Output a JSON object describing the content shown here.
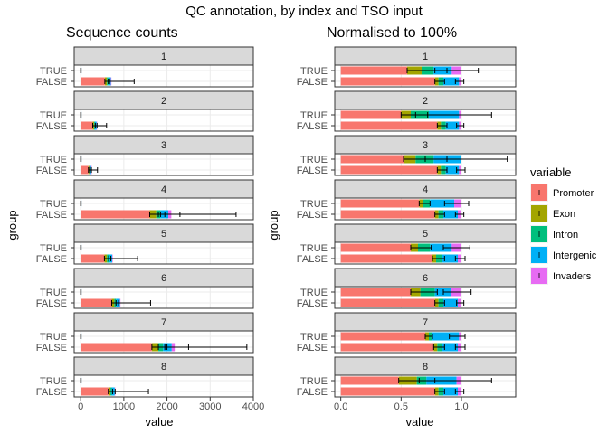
{
  "chart_data": {
    "type": "bar",
    "orientation": "horizontal",
    "stacked": true,
    "title": "QC annotation, by index and TSO input",
    "groups": [
      "TRUE",
      "FALSE"
    ],
    "variables": [
      "Promoter",
      "Exon",
      "Intron",
      "Intergenic",
      "Invaders"
    ],
    "legend": {
      "title": "variable",
      "position": "right"
    },
    "colors": {
      "Promoter": "#F8766D",
      "Exon": "#A3A500",
      "Intron": "#00BF7D",
      "Intergenic": "#00B0F6",
      "Invaders": "#E76BF3",
      "strip_bg": "#D9D9D9",
      "grid": "#EBEBEB"
    },
    "facets": [
      "1",
      "2",
      "3",
      "4",
      "5",
      "6",
      "7",
      "8"
    ],
    "panels": [
      {
        "title": "Sequence counts",
        "xlabel": "value",
        "ylabel": "group",
        "xlim": [
          -150,
          4000
        ],
        "xticks": [
          0,
          1000,
          2000,
          3000,
          4000
        ],
        "xticklabels": [
          "0",
          "1000",
          "2000",
          "3000",
          "4000"
        ],
        "rows": {
          "1": {
            "TRUE": {
              "segments": [
                4,
                1,
                1,
                2,
                0
              ],
              "errors": [
                [
                  0,
                  10
                ]
              ]
            },
            "FALSE": {
              "segments": [
                560,
                50,
                30,
                60,
                10
              ],
              "errors": [
                [
                  560,
                  670
                ],
                [
                  640,
                  1240
                ]
              ]
            }
          },
          "2": {
            "TRUE": {
              "segments": [
                4,
                1,
                1,
                2,
                0
              ],
              "errors": [
                [
                  0,
                  10
                ]
              ]
            },
            "FALSE": {
              "segments": [
                280,
                30,
                20,
                40,
                5
              ],
              "errors": [
                [
                  280,
                  380
                ],
                [
                  340,
                  600
                ]
              ]
            }
          },
          "3": {
            "TRUE": {
              "segments": [
                4,
                1,
                1,
                2,
                0
              ],
              "errors": [
                [
                  0,
                  10
                ]
              ]
            },
            "FALSE": {
              "segments": [
                180,
                20,
                15,
                30,
                5
              ],
              "errors": [
                [
                  180,
                  250
                ],
                [
                  210,
                  390
                ]
              ]
            }
          },
          "4": {
            "TRUE": {
              "segments": [
                4,
                1,
                1,
                2,
                0
              ],
              "errors": [
                [
                  0,
                  10
                ]
              ]
            },
            "FALSE": {
              "segments": [
                1600,
                150,
                100,
                180,
                70
              ],
              "errors": [
                [
                  1600,
                  1850
                ],
                [
                  1800,
                  2300
                ],
                [
                  1950,
                  3600
                ]
              ]
            }
          },
          "5": {
            "TRUE": {
              "segments": [
                4,
                1,
                1,
                2,
                0
              ],
              "errors": [
                [
                  0,
                  10
                ]
              ]
            },
            "FALSE": {
              "segments": [
                550,
                60,
                40,
                80,
                10
              ],
              "errors": [
                [
                  550,
                  700
                ],
                [
                  650,
                  1320
                ]
              ]
            }
          },
          "6": {
            "TRUE": {
              "segments": [
                4,
                1,
                1,
                2,
                0
              ],
              "errors": [
                [
                  0,
                  10
                ]
              ]
            },
            "FALSE": {
              "segments": [
                720,
                60,
                40,
                90,
                10
              ],
              "errors": [
                [
                  720,
                  880
                ],
                [
                  820,
                  1620
                ]
              ]
            }
          },
          "7": {
            "TRUE": {
              "segments": [
                4,
                1,
                1,
                2,
                0
              ],
              "errors": [
                [
                  0,
                  10
                ]
              ]
            },
            "FALSE": {
              "segments": [
                1650,
                150,
                110,
                200,
                70
              ],
              "errors": [
                [
                  1650,
                  1950
                ],
                [
                  1800,
                  2500
                ],
                [
                  2000,
                  3850
                ]
              ]
            }
          },
          "8": {
            "TRUE": {
              "segments": [
                4,
                1,
                1,
                2,
                0
              ],
              "errors": [
                [
                  0,
                  10
                ]
              ]
            },
            "FALSE": {
              "segments": [
                640,
                50,
                30,
                70,
                10
              ],
              "errors": [
                [
                  640,
                  800
                ],
                [
                  740,
                  1570
                ]
              ]
            }
          }
        }
      },
      {
        "title": "Normalised to 100%",
        "xlabel": "value",
        "ylabel": "group",
        "xlim": [
          -0.05,
          1.45
        ],
        "xticks": [
          0,
          0.5,
          1
        ],
        "xticklabels": [
          "0.0",
          "0.5",
          "1.0"
        ],
        "rows": {
          "1": {
            "TRUE": {
              "segments": [
                0.55,
                0.12,
                0.1,
                0.15,
                0.08
              ],
              "errors": [
                [
                  0.55,
                  0.88
                ],
                [
                  0.78,
                  1.14
                ]
              ]
            },
            "FALSE": {
              "segments": [
                0.78,
                0.03,
                0.04,
                0.13,
                0.02
              ],
              "errors": [
                [
                  0.78,
                  0.86
                ],
                [
                  0.95,
                  1.02
                ]
              ]
            }
          },
          "2": {
            "TRUE": {
              "segments": [
                0.5,
                0.08,
                0.15,
                0.25,
                0.02
              ],
              "errors": [
                [
                  0.5,
                  0.72
                ],
                [
                  0.62,
                  1.25
                ]
              ]
            },
            "FALSE": {
              "segments": [
                0.8,
                0.03,
                0.04,
                0.11,
                0.02
              ],
              "errors": [
                [
                  0.8,
                  0.88
                ],
                [
                  0.96,
                  1.02
                ]
              ]
            }
          },
          "3": {
            "TRUE": {
              "segments": [
                0.52,
                0.1,
                0.15,
                0.23,
                0.0
              ],
              "errors": [
                [
                  0.52,
                  0.88
                ],
                [
                  0.7,
                  1.38
                ]
              ]
            },
            "FALSE": {
              "segments": [
                0.8,
                0.03,
                0.04,
                0.11,
                0.02
              ],
              "errors": [
                [
                  0.8,
                  0.88
                ],
                [
                  0.96,
                  1.03
                ]
              ]
            }
          },
          "4": {
            "TRUE": {
              "segments": [
                0.65,
                0.03,
                0.06,
                0.2,
                0.06
              ],
              "errors": [
                [
                  0.65,
                  0.74
                ],
                [
                  0.86,
                  1.06
                ]
              ]
            },
            "FALSE": {
              "segments": [
                0.78,
                0.03,
                0.04,
                0.12,
                0.03
              ],
              "errors": [
                [
                  0.78,
                  0.86
                ],
                [
                  0.95,
                  1.02
                ]
              ]
            }
          },
          "5": {
            "TRUE": {
              "segments": [
                0.58,
                0.06,
                0.1,
                0.18,
                0.08
              ],
              "errors": [
                [
                  0.58,
                  0.75
                ],
                [
                  0.85,
                  1.07
                ]
              ]
            },
            "FALSE": {
              "segments": [
                0.76,
                0.03,
                0.05,
                0.13,
                0.03
              ],
              "errors": [
                [
                  0.76,
                  0.86
                ],
                [
                  0.95,
                  1.03
                ]
              ]
            }
          },
          "6": {
            "TRUE": {
              "segments": [
                0.58,
                0.08,
                0.12,
                0.13,
                0.09
              ],
              "errors": [
                [
                  0.58,
                  0.8
                ],
                [
                  0.85,
                  1.08
                ]
              ]
            },
            "FALSE": {
              "segments": [
                0.78,
                0.03,
                0.04,
                0.12,
                0.03
              ],
              "errors": [
                [
                  0.78,
                  0.86
                ],
                [
                  0.96,
                  1.02
                ]
              ]
            }
          },
          "7": {
            "TRUE": {
              "segments": [
                0.7,
                0.03,
                0.03,
                0.22,
                0.02
              ],
              "errors": [
                [
                  0.7,
                  0.76
                ],
                [
                  0.9,
                  1.03
                ]
              ]
            },
            "FALSE": {
              "segments": [
                0.77,
                0.03,
                0.04,
                0.13,
                0.03
              ],
              "errors": [
                [
                  0.77,
                  0.86
                ],
                [
                  0.95,
                  1.03
                ]
              ]
            }
          },
          "8": {
            "TRUE": {
              "segments": [
                0.48,
                0.15,
                0.08,
                0.25,
                0.04
              ],
              "errors": [
                [
                  0.48,
                  0.78
                ],
                [
                  0.65,
                  1.25
                ]
              ]
            },
            "FALSE": {
              "segments": [
                0.78,
                0.03,
                0.04,
                0.12,
                0.03
              ],
              "errors": [
                [
                  0.78,
                  0.86
                ],
                [
                  0.95,
                  1.02
                ]
              ]
            }
          }
        }
      }
    ]
  }
}
